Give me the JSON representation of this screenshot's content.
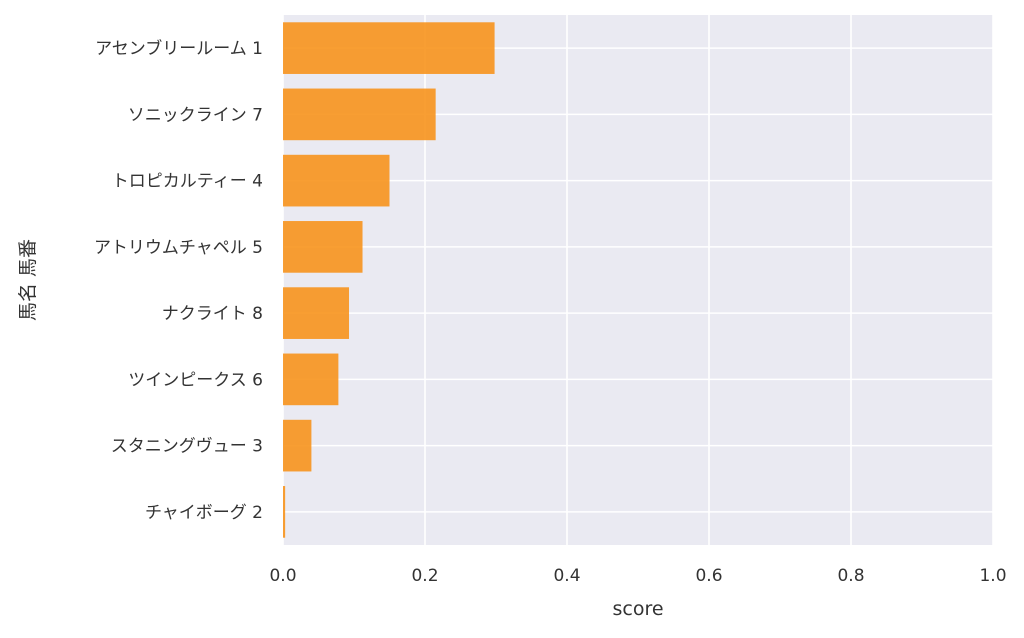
{
  "chart_data": {
    "type": "bar",
    "orientation": "horizontal",
    "categories": [
      "アセンブリールーム 1",
      "ソニックライン 7",
      "トロピカルティー 4",
      "アトリウムチャペル 5",
      "ナクライト 8",
      "ツインピークス 6",
      "スタニングヴュー 3",
      "チャイボーグ 2"
    ],
    "values": [
      0.298,
      0.215,
      0.15,
      0.112,
      0.093,
      0.078,
      0.04,
      0.003
    ],
    "xlabel": "score",
    "ylabel": "馬名 馬番",
    "xlim": [
      0,
      1.0
    ],
    "xticks": [
      "0.0",
      "0.2",
      "0.4",
      "0.6",
      "0.8",
      "1.0"
    ],
    "grid": true,
    "colors": {
      "bar": "#f7941d",
      "background": "#eaeaf2",
      "grid": "#ffffff"
    }
  }
}
